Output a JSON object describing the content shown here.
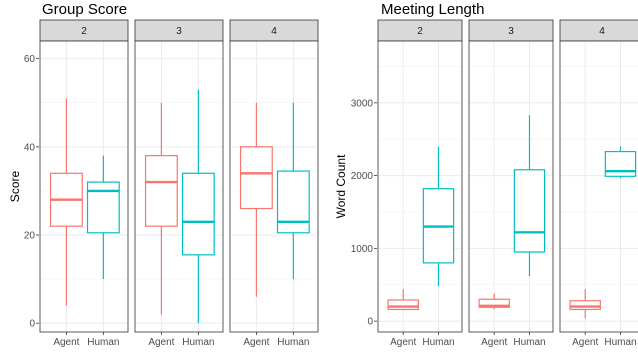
{
  "colors": {
    "Agent": "#F8766D",
    "Human": "#00BFC4"
  },
  "chart_data": [
    {
      "type": "boxplot",
      "title": "Group Score",
      "xlabel": "",
      "ylabel": "Score",
      "ylim": [
        -2,
        64
      ],
      "yticks": [
        0,
        20,
        40,
        60
      ],
      "grid": true,
      "legend": "none",
      "categories": [
        "Agent",
        "Human"
      ],
      "facets": [
        {
          "label": "2",
          "boxes": [
            {
              "category": "Agent",
              "min": 4,
              "q1": 22,
              "median": 28,
              "q3": 34,
              "max": 51
            },
            {
              "category": "Human",
              "min": 10,
              "q1": 20.5,
              "median": 30,
              "q3": 32,
              "max": 38
            }
          ]
        },
        {
          "label": "3",
          "boxes": [
            {
              "category": "Agent",
              "min": 2,
              "q1": 22,
              "median": 32,
              "q3": 38,
              "max": 50
            },
            {
              "category": "Human",
              "min": 0,
              "q1": 15.5,
              "median": 23,
              "q3": 34,
              "max": 53
            }
          ]
        },
        {
          "label": "4",
          "boxes": [
            {
              "category": "Agent",
              "min": 6,
              "q1": 26,
              "median": 34,
              "q3": 40,
              "max": 50
            },
            {
              "category": "Human",
              "min": 10,
              "q1": 20.5,
              "median": 23,
              "q3": 34.5,
              "max": 50
            }
          ]
        }
      ]
    },
    {
      "type": "boxplot",
      "title": "Meeting Length",
      "xlabel": "",
      "ylabel": "Word Count",
      "ylim": [
        -150,
        3850
      ],
      "yticks": [
        0,
        1000,
        2000,
        3000
      ],
      "grid": true,
      "legend": "none",
      "categories": [
        "Agent",
        "Human"
      ],
      "facets": [
        {
          "label": "2",
          "boxes": [
            {
              "category": "Agent",
              "min": 150,
              "q1": 160,
              "median": 200,
              "q3": 290,
              "max": 440
            },
            {
              "category": "Human",
              "min": 480,
              "q1": 800,
              "median": 1300,
              "q3": 1820,
              "max": 2400
            }
          ]
        },
        {
          "label": "3",
          "boxes": [
            {
              "category": "Agent",
              "min": 160,
              "q1": 190,
              "median": 210,
              "q3": 300,
              "max": 380
            },
            {
              "category": "Human",
              "min": 620,
              "q1": 950,
              "median": 1220,
              "q3": 2080,
              "max": 2830
            }
          ]
        },
        {
          "label": "4",
          "boxes": [
            {
              "category": "Agent",
              "min": 40,
              "q1": 160,
              "median": 200,
              "q3": 280,
              "max": 440
            },
            {
              "category": "Human",
              "min": 1960,
              "q1": 1990,
              "median": 2060,
              "q3": 2330,
              "max": 2400
            }
          ]
        }
      ]
    }
  ]
}
